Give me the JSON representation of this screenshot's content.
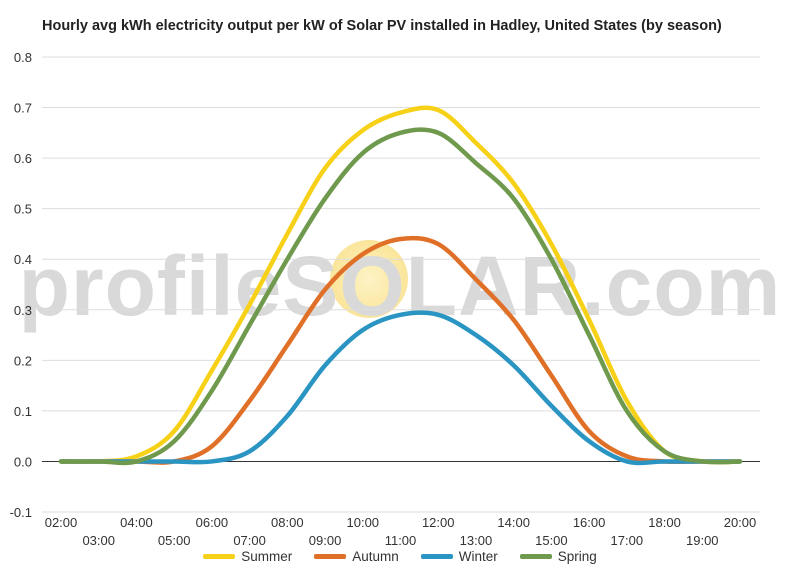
{
  "chart_data": {
    "type": "line",
    "title": "Hourly avg kWh electricity output per kW of Solar PV installed in Hadley, United States (by season)",
    "watermark": "profileSOLAR.com",
    "xlabel": "",
    "ylabel": "",
    "ylim": [
      -0.1,
      0.8
    ],
    "yticks": [
      "-0.1",
      "0.0",
      "0.1",
      "0.2",
      "0.3",
      "0.4",
      "0.5",
      "0.6",
      "0.7",
      "0.8"
    ],
    "yticks_values": [
      -0.1,
      0.0,
      0.1,
      0.2,
      0.3,
      0.4,
      0.5,
      0.6,
      0.7,
      0.8
    ],
    "x": [
      "02:00",
      "03:00",
      "04:00",
      "05:00",
      "06:00",
      "07:00",
      "08:00",
      "09:00",
      "10:00",
      "11:00",
      "12:00",
      "13:00",
      "14:00",
      "15:00",
      "16:00",
      "17:00",
      "18:00",
      "19:00",
      "20:00"
    ],
    "grid": true,
    "legend_position": "bottom",
    "series": [
      {
        "name": "Summer",
        "color": "#f7d117",
        "values": [
          0.0,
          0.0,
          0.01,
          0.06,
          0.18,
          0.31,
          0.45,
          0.58,
          0.655,
          0.69,
          0.695,
          0.63,
          0.55,
          0.43,
          0.28,
          0.12,
          0.02,
          0.0,
          0.0
        ]
      },
      {
        "name": "Autumn",
        "color": "#e07028",
        "values": [
          0.0,
          0.0,
          0.0,
          0.0,
          0.03,
          0.12,
          0.23,
          0.34,
          0.41,
          0.44,
          0.43,
          0.36,
          0.28,
          0.17,
          0.06,
          0.01,
          0.0,
          0.0,
          0.0
        ]
      },
      {
        "name": "Winter",
        "color": "#2a95c2",
        "values": [
          0.0,
          0.0,
          0.0,
          0.0,
          0.0,
          0.02,
          0.09,
          0.19,
          0.26,
          0.29,
          0.29,
          0.25,
          0.19,
          0.11,
          0.04,
          0.0,
          0.0,
          0.0,
          0.0
        ]
      },
      {
        "name": "Spring",
        "color": "#6f9a4d",
        "values": [
          0.0,
          0.0,
          0.0,
          0.04,
          0.14,
          0.27,
          0.4,
          0.52,
          0.61,
          0.65,
          0.65,
          0.59,
          0.52,
          0.4,
          0.25,
          0.1,
          0.02,
          0.0,
          0.0
        ]
      }
    ]
  }
}
